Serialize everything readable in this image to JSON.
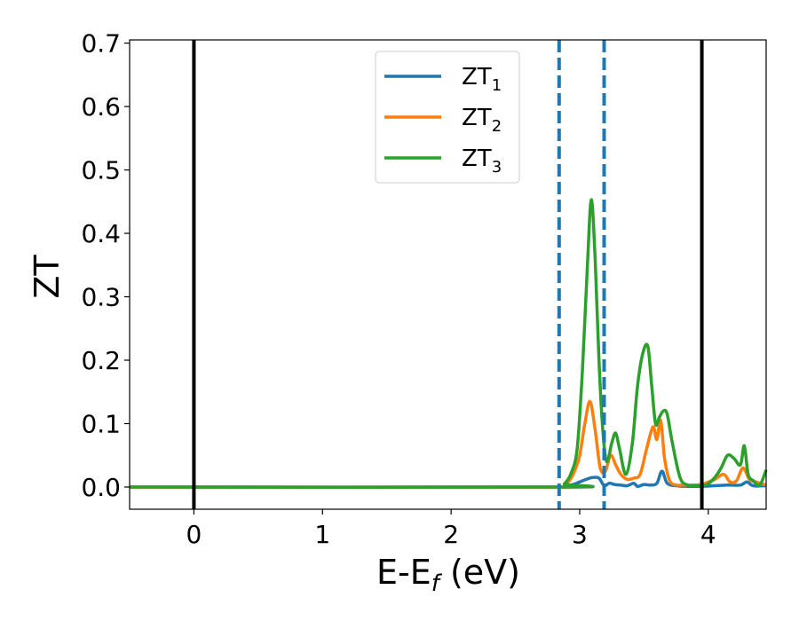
{
  "chart_data": {
    "type": "line",
    "title": "",
    "xlabel": "E-E",
    "xlabel_sub": "f",
    "xlabel_unit": " (eV)",
    "ylabel": "ZT",
    "xlim": [
      -0.5,
      4.45
    ],
    "ylim": [
      -0.035,
      0.705
    ],
    "xticks": [
      0,
      1,
      2,
      3,
      4
    ],
    "yticks": [
      0.0,
      0.1,
      0.2,
      0.3,
      0.4,
      0.5,
      0.6,
      0.7
    ],
    "ytick_labels": [
      "0.0",
      "0.1",
      "0.2",
      "0.3",
      "0.4",
      "0.5",
      "0.6",
      "0.7"
    ],
    "grid": false,
    "legend_position": "top-center",
    "vlines_solid": [
      0.0,
      3.95
    ],
    "vlines_dashed": [
      2.84,
      3.19
    ],
    "series": [
      {
        "name": "ZT",
        "sub": "1",
        "color": "#1f77b4",
        "x": [
          -0.5,
          2.84,
          2.9,
          2.95,
          3.0,
          3.05,
          3.1,
          3.15,
          3.19,
          3.23,
          3.27,
          3.32,
          3.37,
          3.42,
          3.45,
          3.5,
          3.55,
          3.6,
          3.64,
          3.68,
          3.75,
          3.85,
          3.95,
          4.05,
          4.15,
          4.25,
          4.3,
          4.35,
          4.45
        ],
        "y": [
          0.0,
          0.0,
          0.002,
          0.004,
          0.008,
          0.012,
          0.015,
          0.014,
          0.002,
          0.006,
          0.004,
          0.003,
          0.002,
          0.006,
          0.001,
          0.004,
          0.003,
          0.006,
          0.025,
          0.006,
          0.002,
          0.001,
          0.001,
          0.002,
          0.003,
          0.003,
          0.008,
          0.002,
          0.002
        ]
      },
      {
        "name": "ZT",
        "sub": "2",
        "color": "#ff7f0e",
        "x": [
          -0.5,
          2.84,
          2.88,
          2.92,
          2.96,
          3.0,
          3.04,
          3.08,
          3.12,
          3.16,
          3.2,
          3.24,
          3.28,
          3.32,
          3.37,
          3.42,
          3.47,
          3.52,
          3.57,
          3.6,
          3.63,
          3.66,
          3.7,
          3.75,
          3.8,
          3.88,
          3.95,
          4.0,
          4.05,
          4.12,
          4.17,
          4.22,
          4.27,
          4.32,
          4.37,
          4.45
        ],
        "y": [
          0.0,
          0.0,
          0.003,
          0.01,
          0.025,
          0.05,
          0.1,
          0.135,
          0.09,
          0.03,
          0.025,
          0.05,
          0.035,
          0.02,
          0.012,
          0.014,
          0.02,
          0.06,
          0.095,
          0.075,
          0.105,
          0.045,
          0.01,
          0.003,
          0.003,
          0.003,
          0.004,
          0.008,
          0.012,
          0.02,
          0.008,
          0.01,
          0.03,
          0.012,
          0.008,
          0.003
        ]
      },
      {
        "name": "ZT",
        "sub": "3",
        "color": "#2ca02c",
        "x": [
          -0.5,
          2.84,
          2.88,
          2.93,
          2.98,
          3.02,
          3.06,
          3.09,
          3.12,
          3.15,
          3.18,
          3.21,
          3.25,
          3.28,
          3.31,
          3.36,
          3.41,
          3.45,
          3.49,
          3.53,
          3.56,
          3.59,
          3.62,
          3.65,
          3.68,
          3.72,
          3.78,
          3.84,
          3.9,
          3.95,
          4.0,
          4.05,
          4.1,
          4.15,
          4.2,
          4.25,
          4.28,
          4.31,
          4.35,
          4.4,
          4.45
        ],
        "y": [
          0.0,
          0.0,
          0.005,
          0.02,
          0.06,
          0.18,
          0.35,
          0.453,
          0.36,
          0.2,
          0.09,
          0.04,
          0.07,
          0.085,
          0.06,
          0.02,
          0.07,
          0.16,
          0.21,
          0.222,
          0.16,
          0.1,
          0.11,
          0.12,
          0.115,
          0.07,
          0.015,
          0.003,
          0.002,
          0.002,
          0.005,
          0.015,
          0.03,
          0.05,
          0.045,
          0.035,
          0.065,
          0.02,
          0.01,
          0.003,
          0.027
        ]
      }
    ]
  }
}
